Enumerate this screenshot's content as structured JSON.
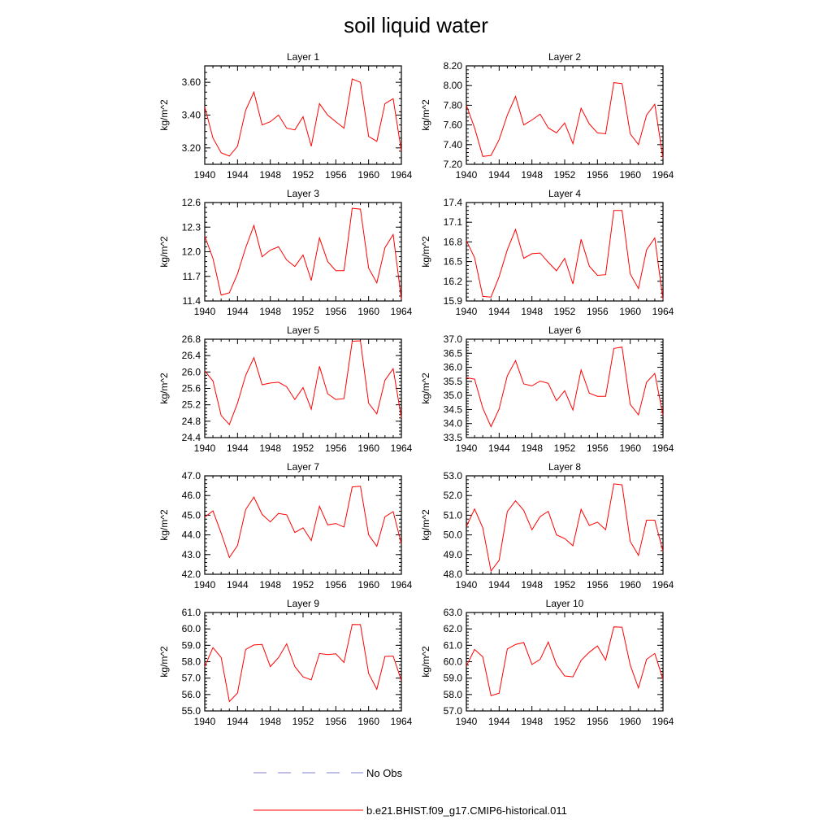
{
  "figure": {
    "title": "soil liquid water",
    "legend": [
      {
        "label": "No Obs",
        "color": "#7f7fd0",
        "dash": "dashed"
      },
      {
        "label": "b.e21.BHIST.f09_g17.CMIP6-historical.011",
        "color": "#ff0000",
        "dash": "solid"
      }
    ]
  },
  "chart_data": [
    {
      "type": "line",
      "title": "Layer 1",
      "xlabel": "",
      "ylabel": "kg/m^2",
      "xlim": [
        1940,
        1964
      ],
      "ylim": [
        3.1,
        3.7
      ],
      "xticks": [
        "1940",
        "1944",
        "1948",
        "1952",
        "1956",
        "1960",
        "1964"
      ],
      "yticks": [
        "3.20",
        "3.40",
        "3.60"
      ],
      "series": [
        {
          "color": "#ff0000",
          "x": [
            1940,
            1941,
            1942,
            1943,
            1944,
            1945,
            1946,
            1947,
            1948,
            1949,
            1950,
            1951,
            1952,
            1953,
            1954,
            1955,
            1956,
            1957,
            1958,
            1959,
            1960,
            1961,
            1962,
            1963,
            1964
          ],
          "values": [
            3.45,
            3.26,
            3.17,
            3.15,
            3.21,
            3.43,
            3.54,
            3.34,
            3.36,
            3.4,
            3.32,
            3.31,
            3.39,
            3.21,
            3.47,
            3.4,
            3.36,
            3.32,
            3.62,
            3.6,
            3.27,
            3.24,
            3.47,
            3.5,
            3.18
          ]
        }
      ]
    },
    {
      "type": "line",
      "title": "Layer 2",
      "xlabel": "",
      "ylabel": "kg/m^2",
      "xlim": [
        1940,
        1964
      ],
      "ylim": [
        7.2,
        8.2
      ],
      "xticks": [
        "1940",
        "1944",
        "1948",
        "1952",
        "1956",
        "1960",
        "1964"
      ],
      "yticks": [
        "7.20",
        "7.40",
        "7.60",
        "7.80",
        "8.00",
        "8.20"
      ],
      "series": [
        {
          "color": "#ff0000",
          "x": [
            1940,
            1941,
            1942,
            1943,
            1944,
            1945,
            1946,
            1947,
            1948,
            1949,
            1950,
            1951,
            1952,
            1953,
            1954,
            1955,
            1956,
            1957,
            1958,
            1959,
            1960,
            1961,
            1962,
            1963,
            1964
          ],
          "values": [
            7.8,
            7.57,
            7.28,
            7.29,
            7.45,
            7.7,
            7.89,
            7.6,
            7.65,
            7.71,
            7.57,
            7.52,
            7.62,
            7.41,
            7.77,
            7.61,
            7.52,
            7.51,
            8.03,
            8.02,
            7.51,
            7.4,
            7.7,
            7.81,
            7.26
          ]
        }
      ]
    },
    {
      "type": "line",
      "title": "Layer 3",
      "xlabel": "",
      "ylabel": "kg/m^2",
      "xlim": [
        1940,
        1964
      ],
      "ylim": [
        11.4,
        12.6
      ],
      "xticks": [
        "1940",
        "1944",
        "1948",
        "1952",
        "1956",
        "1960",
        "1964"
      ],
      "yticks": [
        "11.4",
        "11.7",
        "12.0",
        "12.3",
        "12.6"
      ],
      "series": [
        {
          "color": "#ff0000",
          "x": [
            1940,
            1941,
            1942,
            1943,
            1944,
            1945,
            1946,
            1947,
            1948,
            1949,
            1950,
            1951,
            1952,
            1953,
            1954,
            1955,
            1956,
            1957,
            1958,
            1959,
            1960,
            1961,
            1962,
            1963,
            1964
          ],
          "values": [
            12.19,
            11.92,
            11.47,
            11.5,
            11.73,
            12.05,
            12.32,
            11.94,
            12.02,
            12.06,
            11.9,
            11.82,
            11.96,
            11.65,
            12.17,
            11.88,
            11.77,
            11.77,
            12.53,
            12.52,
            11.8,
            11.62,
            12.05,
            12.21,
            11.42
          ]
        }
      ]
    },
    {
      "type": "line",
      "title": "Layer 4",
      "xlabel": "",
      "ylabel": "kg/m^2",
      "xlim": [
        1940,
        1964
      ],
      "ylim": [
        15.9,
        17.4
      ],
      "xticks": [
        "1940",
        "1944",
        "1948",
        "1952",
        "1956",
        "1960",
        "1964"
      ],
      "yticks": [
        "15.9",
        "16.2",
        "16.5",
        "16.8",
        "17.1",
        "17.4"
      ],
      "series": [
        {
          "color": "#ff0000",
          "x": [
            1940,
            1941,
            1942,
            1943,
            1944,
            1945,
            1946,
            1947,
            1948,
            1949,
            1950,
            1951,
            1952,
            1953,
            1954,
            1955,
            1956,
            1957,
            1958,
            1959,
            1960,
            1961,
            1962,
            1963,
            1964
          ],
          "values": [
            16.82,
            16.56,
            15.97,
            15.96,
            16.27,
            16.68,
            16.99,
            16.55,
            16.62,
            16.63,
            16.49,
            16.36,
            16.55,
            16.16,
            16.84,
            16.43,
            16.29,
            16.3,
            17.28,
            17.28,
            16.31,
            16.09,
            16.68,
            16.86,
            15.92
          ]
        }
      ]
    },
    {
      "type": "line",
      "title": "Layer 5",
      "xlabel": "",
      "ylabel": "kg/m^2",
      "xlim": [
        1940,
        1964
      ],
      "ylim": [
        24.4,
        26.8
      ],
      "xticks": [
        "1940",
        "1944",
        "1948",
        "1952",
        "1956",
        "1960",
        "1964"
      ],
      "yticks": [
        "24.4",
        "24.8",
        "25.2",
        "25.6",
        "26.0",
        "26.4",
        "26.8"
      ],
      "series": [
        {
          "color": "#ff0000",
          "x": [
            1940,
            1941,
            1942,
            1943,
            1944,
            1945,
            1946,
            1947,
            1948,
            1949,
            1950,
            1951,
            1952,
            1953,
            1954,
            1955,
            1956,
            1957,
            1958,
            1959,
            1960,
            1961,
            1962,
            1963,
            1964
          ],
          "values": [
            26.03,
            25.78,
            24.94,
            24.72,
            25.24,
            25.92,
            26.35,
            25.69,
            25.73,
            25.75,
            25.64,
            25.33,
            25.62,
            25.09,
            26.14,
            25.47,
            25.33,
            25.35,
            26.75,
            26.76,
            25.24,
            24.98,
            25.8,
            26.08,
            24.88
          ]
        }
      ]
    },
    {
      "type": "line",
      "title": "Layer 6",
      "xlabel": "",
      "ylabel": "kg/m^2",
      "xlim": [
        1940,
        1964
      ],
      "ylim": [
        33.5,
        37.0
      ],
      "xticks": [
        "1940",
        "1944",
        "1948",
        "1952",
        "1956",
        "1960",
        "1964"
      ],
      "yticks": [
        "33.5",
        "34.0",
        "34.5",
        "35.0",
        "35.5",
        "36.0",
        "36.5",
        "37.0"
      ],
      "series": [
        {
          "color": "#ff0000",
          "x": [
            1940,
            1941,
            1942,
            1943,
            1944,
            1945,
            1946,
            1947,
            1948,
            1949,
            1950,
            1951,
            1952,
            1953,
            1954,
            1955,
            1956,
            1957,
            1958,
            1959,
            1960,
            1961,
            1962,
            1963,
            1964
          ],
          "values": [
            35.63,
            35.58,
            34.55,
            33.89,
            34.52,
            35.7,
            36.24,
            35.41,
            35.34,
            35.51,
            35.43,
            34.81,
            35.17,
            34.48,
            35.91,
            35.08,
            34.97,
            34.97,
            36.67,
            36.72,
            34.68,
            34.31,
            35.47,
            35.78,
            34.29
          ]
        }
      ]
    },
    {
      "type": "line",
      "title": "Layer 7",
      "xlabel": "",
      "ylabel": "kg/m^2",
      "xlim": [
        1940,
        1964
      ],
      "ylim": [
        42.0,
        47.0
      ],
      "xticks": [
        "1940",
        "1944",
        "1948",
        "1952",
        "1956",
        "1960",
        "1964"
      ],
      "yticks": [
        "42.0",
        "43.0",
        "44.0",
        "45.0",
        "46.0",
        "47.0"
      ],
      "series": [
        {
          "color": "#ff0000",
          "x": [
            1940,
            1941,
            1942,
            1943,
            1944,
            1945,
            1946,
            1947,
            1948,
            1949,
            1950,
            1951,
            1952,
            1953,
            1954,
            1955,
            1956,
            1957,
            1958,
            1959,
            1960,
            1961,
            1962,
            1963,
            1964
          ],
          "values": [
            44.9,
            45.22,
            44.09,
            42.85,
            43.46,
            45.29,
            45.92,
            45.04,
            44.66,
            45.09,
            45.02,
            44.12,
            44.36,
            43.71,
            45.46,
            44.51,
            44.58,
            44.4,
            46.44,
            46.47,
            44.0,
            43.42,
            44.92,
            45.18,
            43.55
          ]
        }
      ]
    },
    {
      "type": "line",
      "title": "Layer 8",
      "xlabel": "",
      "ylabel": "kg/m^2",
      "xlim": [
        1940,
        1964
      ],
      "ylim": [
        48.0,
        53.0
      ],
      "xticks": [
        "1940",
        "1944",
        "1948",
        "1952",
        "1956",
        "1960",
        "1964"
      ],
      "yticks": [
        "48.0",
        "49.0",
        "50.0",
        "51.0",
        "52.0",
        "53.0"
      ],
      "series": [
        {
          "color": "#ff0000",
          "x": [
            1940,
            1941,
            1942,
            1943,
            1944,
            1945,
            1946,
            1947,
            1948,
            1949,
            1950,
            1951,
            1952,
            1953,
            1954,
            1955,
            1956,
            1957,
            1958,
            1959,
            1960,
            1961,
            1962,
            1963,
            1964
          ],
          "values": [
            50.42,
            51.32,
            50.36,
            48.16,
            48.71,
            51.19,
            51.73,
            51.25,
            50.26,
            50.93,
            51.2,
            50.0,
            49.82,
            49.45,
            51.3,
            50.48,
            50.65,
            50.26,
            52.59,
            52.54,
            49.67,
            48.96,
            50.75,
            50.75,
            49.16
          ]
        }
      ]
    },
    {
      "type": "line",
      "title": "Layer 9",
      "xlabel": "",
      "ylabel": "kg/m^2",
      "xlim": [
        1940,
        1964
      ],
      "ylim": [
        55.0,
        61.0
      ],
      "xticks": [
        "1940",
        "1944",
        "1948",
        "1952",
        "1956",
        "1960",
        "1964"
      ],
      "yticks": [
        "55.0",
        "56.0",
        "57.0",
        "58.0",
        "59.0",
        "60.0",
        "61.0"
      ],
      "series": [
        {
          "color": "#ff0000",
          "x": [
            1940,
            1941,
            1942,
            1943,
            1944,
            1945,
            1946,
            1947,
            1948,
            1949,
            1950,
            1951,
            1952,
            1953,
            1954,
            1955,
            1956,
            1957,
            1958,
            1959,
            1960,
            1961,
            1962,
            1963,
            1964
          ],
          "values": [
            57.7,
            58.86,
            58.26,
            55.57,
            56.09,
            58.75,
            59.02,
            59.05,
            57.7,
            58.25,
            59.09,
            57.7,
            57.08,
            56.89,
            58.5,
            58.43,
            58.48,
            57.95,
            60.27,
            60.26,
            57.29,
            56.32,
            58.32,
            58.34,
            56.85
          ]
        }
      ]
    },
    {
      "type": "line",
      "title": "Layer 10",
      "xlabel": "",
      "ylabel": "kg/m^2",
      "xlim": [
        1940,
        1964
      ],
      "ylim": [
        57.0,
        63.0
      ],
      "xticks": [
        "1940",
        "1944",
        "1948",
        "1952",
        "1956",
        "1960",
        "1964"
      ],
      "yticks": [
        "57.0",
        "58.0",
        "59.0",
        "60.0",
        "61.0",
        "62.0",
        "63.0"
      ],
      "series": [
        {
          "color": "#ff0000",
          "x": [
            1940,
            1941,
            1942,
            1943,
            1944,
            1945,
            1946,
            1947,
            1948,
            1949,
            1950,
            1951,
            1952,
            1953,
            1954,
            1955,
            1956,
            1957,
            1958,
            1959,
            1960,
            1961,
            1962,
            1963,
            1964
          ],
          "values": [
            59.73,
            60.75,
            60.3,
            57.93,
            58.08,
            60.78,
            61.05,
            61.17,
            59.83,
            60.14,
            61.2,
            59.82,
            59.13,
            59.08,
            60.08,
            60.58,
            60.96,
            60.1,
            62.12,
            62.1,
            59.79,
            58.4,
            60.15,
            60.5,
            58.92
          ]
        }
      ]
    }
  ]
}
